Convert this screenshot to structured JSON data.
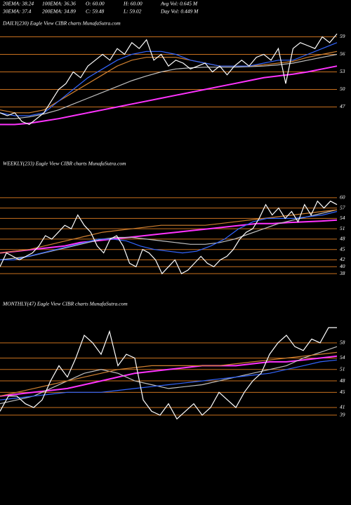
{
  "header": {
    "rows": [
      [
        "20EMA: 38.24",
        "100EMA: 36.36",
        "O: 60.00",
        "H: 60.00",
        "Avg Vol: 0.645 M"
      ],
      [
        "30EMA: 37.4",
        "200EMA: 34.89",
        "C: 59.48",
        "L: 59.02",
        "Day Vol: 0.449 M"
      ]
    ]
  },
  "chart_data": [
    {
      "type": "line",
      "title": "DAILY(230) Eagle  View  CIBR charts MunafaSutra.com",
      "ylim": [
        42.5,
        60.5
      ],
      "yticks": [
        59,
        56,
        53,
        50,
        47
      ],
      "grid": true,
      "grid_color": "#c8701e",
      "series": [
        {
          "color": "#ff33ff",
          "values": [
            44,
            44,
            44.2,
            44.6,
            45,
            45.5,
            46,
            46.5,
            47,
            47.5,
            48,
            48.5,
            49,
            49.5,
            50,
            50.5,
            51,
            51.5,
            52,
            52.3,
            52.6,
            53,
            53.5,
            54
          ]
        },
        {
          "color": "#c0c0c0",
          "values": [
            45,
            45,
            45.3,
            45.8,
            46.5,
            47.5,
            48.5,
            49.5,
            50.5,
            51.5,
            52.3,
            53,
            53.5,
            53.7,
            53.8,
            53.8,
            53.8,
            53.9,
            54,
            54.2,
            54.5,
            55,
            55.5,
            56
          ]
        },
        {
          "color": "#d08030",
          "values": [
            46.5,
            46,
            46,
            46.5,
            48,
            49.5,
            51,
            52.5,
            54,
            55,
            55.5,
            55.5,
            55.5,
            55,
            54.5,
            54,
            54,
            54,
            54.2,
            54.5,
            54.8,
            55.5,
            56,
            56.5
          ]
        },
        {
          "color": "#3366ff",
          "values": [
            46,
            45.5,
            45.5,
            46,
            48,
            50,
            52,
            53.5,
            55,
            56,
            56.5,
            56.5,
            56,
            55,
            54.5,
            54,
            54,
            54,
            54.5,
            55,
            55,
            56,
            57,
            58
          ]
        },
        {
          "color": "#ffffff",
          "values": [
            46,
            45.5,
            46,
            44.5,
            44,
            45,
            46,
            48,
            50,
            51,
            53,
            52,
            54,
            55,
            56,
            55,
            57,
            56,
            58,
            57,
            58.5,
            55,
            56,
            54,
            55,
            54.5,
            53.5,
            54,
            54.5,
            53,
            54,
            52.5,
            54,
            55,
            54,
            55.5,
            56,
            55,
            57,
            51,
            57,
            58,
            57.5,
            57,
            59,
            58,
            59.5
          ]
        }
      ]
    },
    {
      "type": "line",
      "title": "WEEKLY(233) Eagle  View  CIBR charts MunafaSutra.com",
      "ylim": [
        36,
        68.5
      ],
      "yticks": [
        60,
        57,
        54,
        51,
        48,
        45,
        42,
        40,
        38
      ],
      "grid": true,
      "grid_color": "#c8701e",
      "series": [
        {
          "color": "#ff33ff",
          "values": [
            44,
            44.5,
            45,
            45.5,
            46,
            47,
            47.5,
            48,
            48.5,
            49,
            49.5,
            50,
            50.5,
            51,
            51.5,
            52,
            52.5,
            52.5,
            52.8,
            53,
            53.2,
            53.5
          ]
        },
        {
          "color": "#c0c0c0",
          "values": [
            42,
            42.5,
            43,
            44,
            45,
            46,
            47,
            48,
            48.5,
            48.5,
            48,
            47.5,
            47,
            46.5,
            46.5,
            47,
            48,
            49.5,
            51,
            52.5,
            53.5,
            54.5,
            55.5,
            56.5
          ]
        },
        {
          "color": "#d08030",
          "values": [
            44,
            44.5,
            45,
            46,
            47,
            48,
            49,
            50,
            50.5,
            51,
            51.5,
            52,
            52,
            52,
            52,
            52.5,
            53,
            53.5,
            54,
            54.5,
            55,
            55.5,
            56,
            56.5
          ]
        },
        {
          "color": "#3366ff",
          "values": [
            42,
            42,
            43,
            44,
            45,
            46,
            47,
            48,
            48,
            47.5,
            46,
            45,
            44.5,
            44,
            44.5,
            46,
            48,
            51,
            53,
            54,
            54,
            54,
            54.5,
            55,
            56
          ]
        },
        {
          "color": "#ffffff",
          "values": [
            40,
            44,
            43,
            42,
            43,
            44,
            46,
            49,
            48,
            50,
            52,
            51,
            55,
            52,
            50,
            46,
            44,
            48,
            49,
            46,
            41,
            40,
            45,
            44,
            42,
            38,
            40,
            42,
            38,
            39,
            41,
            43,
            41,
            40,
            42,
            43,
            45,
            48,
            50,
            51,
            54,
            58,
            55,
            57,
            54,
            56,
            53,
            58,
            55,
            59,
            57,
            59,
            58
          ]
        }
      ]
    },
    {
      "type": "line",
      "title": "MONTHLY(47) Eagle  View  CIBR charts MunafaSutra.com",
      "ylim": [
        37.5,
        67
      ],
      "yticks": [
        58,
        54,
        51,
        48,
        45,
        41,
        39
      ],
      "grid": true,
      "grid_color": "#c8701e",
      "series": [
        {
          "color": "#ff33ff",
          "values": [
            44,
            44.5,
            45,
            45.5,
            46,
            47,
            48,
            49,
            50,
            50.5,
            51,
            51.5,
            52,
            52,
            52,
            52.5,
            53,
            53,
            53.5,
            54,
            54.5
          ]
        },
        {
          "color": "#c0c0c0",
          "values": [
            42,
            43,
            44,
            46,
            48,
            50,
            51,
            50,
            48,
            47,
            46,
            46.5,
            47,
            48,
            49,
            50,
            51,
            52,
            54,
            55.5,
            57
          ]
        },
        {
          "color": "#d08030",
          "values": [
            44,
            45,
            46,
            47,
            48,
            49,
            50,
            51,
            51.5,
            52,
            52,
            52,
            52,
            52,
            52.5,
            53,
            53.5,
            54,
            54.5,
            55,
            55.5
          ]
        },
        {
          "color": "#3366ff",
          "values": [
            43,
            43.5,
            44,
            44.5,
            45,
            45,
            45,
            45.5,
            46,
            46.5,
            47,
            47.5,
            48,
            48.5,
            49,
            49.5,
            50,
            51,
            52,
            53,
            53.5
          ]
        },
        {
          "color": "#ffffff",
          "values": [
            40,
            44,
            44,
            42,
            41,
            43,
            48,
            52,
            49,
            54,
            60,
            58,
            55,
            61,
            52,
            55,
            54,
            43,
            40,
            39,
            42,
            38,
            40,
            42,
            39,
            41,
            45,
            43,
            41,
            45,
            48,
            50,
            55,
            58,
            60,
            57,
            56,
            59,
            58,
            62,
            62
          ]
        }
      ]
    }
  ]
}
